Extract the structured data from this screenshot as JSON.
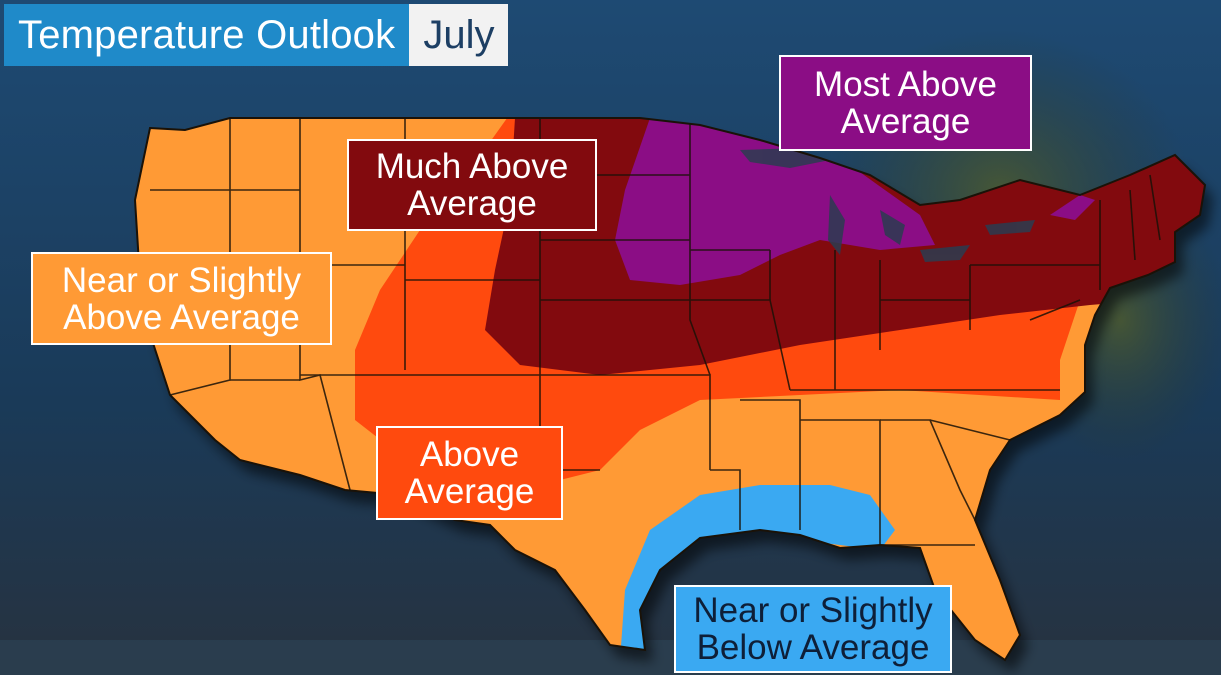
{
  "title": {
    "main": "Temperature Outlook",
    "month": "July"
  },
  "regions": {
    "most_above": {
      "line1": "Most Above",
      "line2": "Average",
      "color": "#8b0d85"
    },
    "much_above": {
      "line1": "Much Above",
      "line2": "Average",
      "color": "#820a0e"
    },
    "near_above": {
      "line1": "Near or Slightly",
      "line2": "Above Average",
      "color": "#ff9a35"
    },
    "above": {
      "line1": "Above",
      "line2": "Average",
      "color": "#ff4a0e"
    },
    "near_below": {
      "line1": "Near or Slightly",
      "line2": "Below Average",
      "color": "#3aa9f2"
    }
  }
}
